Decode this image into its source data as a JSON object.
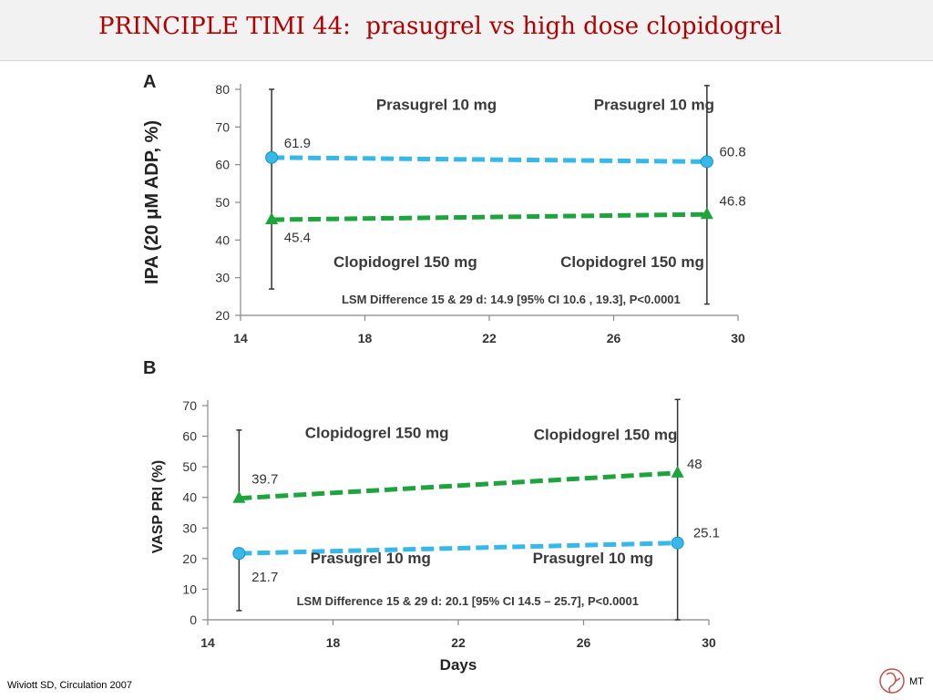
{
  "slide": {
    "title": "PRINCIPLE TIMI 44:  prasugrel vs high dose clopidogrel",
    "citation": "Wiviott SD, Circulation 2007",
    "initials": "MT"
  },
  "colors": {
    "title": "#b20000",
    "prasugrel": "#36b8e8",
    "clopidogrel": "#1ea43c",
    "errorbar": "#333333"
  },
  "chart_data": [
    {
      "panel": "A",
      "type": "line",
      "ylabel": "IPA (20 μM ADP, %)",
      "xlabel": "",
      "xlim": [
        14,
        30
      ],
      "ylim": [
        20,
        80
      ],
      "xticks": [
        "14",
        "18",
        "22",
        "26",
        "30"
      ],
      "yticks": [
        "20",
        "30",
        "40",
        "50",
        "60",
        "70",
        "80"
      ],
      "series": [
        {
          "key": "prasugrel",
          "marker": "circle",
          "x": [
            15,
            29
          ],
          "y": [
            61.9,
            60.8
          ],
          "err_low": [
            null,
            23
          ],
          "err_high": [
            null,
            81
          ]
        },
        {
          "key": "clopidogrel",
          "marker": "triangle",
          "x": [
            15,
            29
          ],
          "y": [
            45.4,
            46.8
          ],
          "err_low": [
            27,
            null
          ],
          "err_high": [
            80,
            null
          ]
        }
      ],
      "point_labels": [
        {
          "text": "61.9",
          "x": 15.4,
          "y": 64.5
        },
        {
          "text": "45.4",
          "x": 15.4,
          "y": 39.5
        },
        {
          "text": "60.8",
          "x": 29.4,
          "y": 62.2
        },
        {
          "text": "46.8",
          "x": 29.4,
          "y": 49.2
        }
      ],
      "annotations": [
        {
          "text": "Prasugrel 10 mg",
          "x": 20.3,
          "y": 74.5
        },
        {
          "text": "Prasugrel 10 mg",
          "x": 27.3,
          "y": 74.5
        },
        {
          "text": "Clopidogrel 150 mg",
          "x": 19.3,
          "y": 32.8
        },
        {
          "text": "Clopidogrel 150 mg",
          "x": 26.6,
          "y": 32.8
        },
        {
          "text": "LSM Difference 15 & 29 d: 14.9 [95% CI 10.6 , 19.3], P<0.0001",
          "x": 22.7,
          "y": 23.2
        }
      ]
    },
    {
      "panel": "B",
      "type": "line",
      "ylabel": "VASP PRI (%)",
      "xlabel": "Days",
      "xlim": [
        14,
        30
      ],
      "ylim": [
        0,
        70
      ],
      "xticks": [
        "14",
        "18",
        "22",
        "26",
        "30"
      ],
      "yticks": [
        "0",
        "10",
        "20",
        "30",
        "40",
        "50",
        "60",
        "70"
      ],
      "series": [
        {
          "key": "prasugrel",
          "marker": "circle",
          "x": [
            15,
            29
          ],
          "y": [
            21.7,
            25.1
          ],
          "err_low": [
            3,
            0
          ],
          "err_high": [
            null,
            72
          ]
        },
        {
          "key": "clopidogrel",
          "marker": "triangle",
          "x": [
            15,
            29
          ],
          "y": [
            39.7,
            48
          ],
          "err_low": [
            null,
            null
          ],
          "err_high": [
            62,
            null
          ]
        }
      ],
      "point_labels": [
        {
          "text": "39.7",
          "x": 15.4,
          "y": 44.5
        },
        {
          "text": "21.7",
          "x": 15.4,
          "y": 12.5
        },
        {
          "text": "48",
          "x": 29.3,
          "y": 49.5
        },
        {
          "text": "25.1",
          "x": 29.5,
          "y": 27
        }
      ],
      "annotations": [
        {
          "text": "Clopidogrel 150 mg",
          "x": 19.4,
          "y": 59.5
        },
        {
          "text": "Clopidogrel 150 mg",
          "x": 26.7,
          "y": 58.8
        },
        {
          "text": "Prasugrel 10 mg",
          "x": 19.2,
          "y": 18.5
        },
        {
          "text": "Prasugrel 10 mg",
          "x": 26.3,
          "y": 18.5
        },
        {
          "text": "LSM Difference 15 & 29 d: 20.1 [95% CI 14.5 – 25.7], P<0.0001",
          "x": 22.3,
          "y": 4.7
        }
      ]
    }
  ]
}
